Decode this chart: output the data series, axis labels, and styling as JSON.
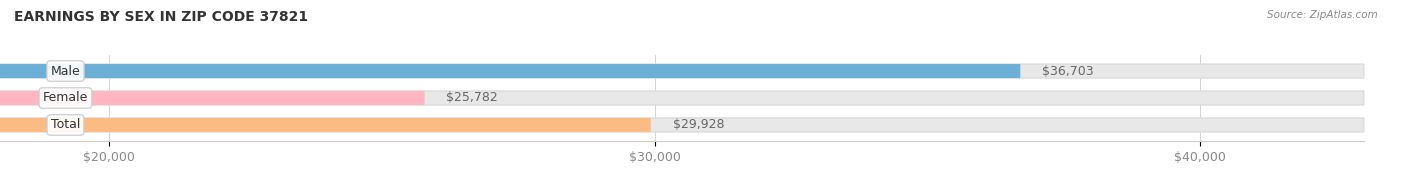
{
  "title": "EARNINGS BY SEX IN ZIP CODE 37821",
  "source": "Source: ZipAtlas.com",
  "categories": [
    "Male",
    "Female",
    "Total"
  ],
  "values": [
    36703,
    25782,
    29928
  ],
  "bar_colors": [
    "#6BAED6",
    "#FFB6C1",
    "#FDBB84"
  ],
  "bar_track_color": "#E8E8E8",
  "xlim": [
    18000,
    43000
  ],
  "xticks": [
    20000,
    30000,
    40000
  ],
  "xticklabels": [
    "$20,000",
    "$30,000",
    "$40,000"
  ],
  "label_fontsize": 9,
  "title_fontsize": 10,
  "value_label_color": "#666666",
  "category_label_color": "#333333",
  "background_color": "#FFFFFF",
  "bar_height": 0.52
}
